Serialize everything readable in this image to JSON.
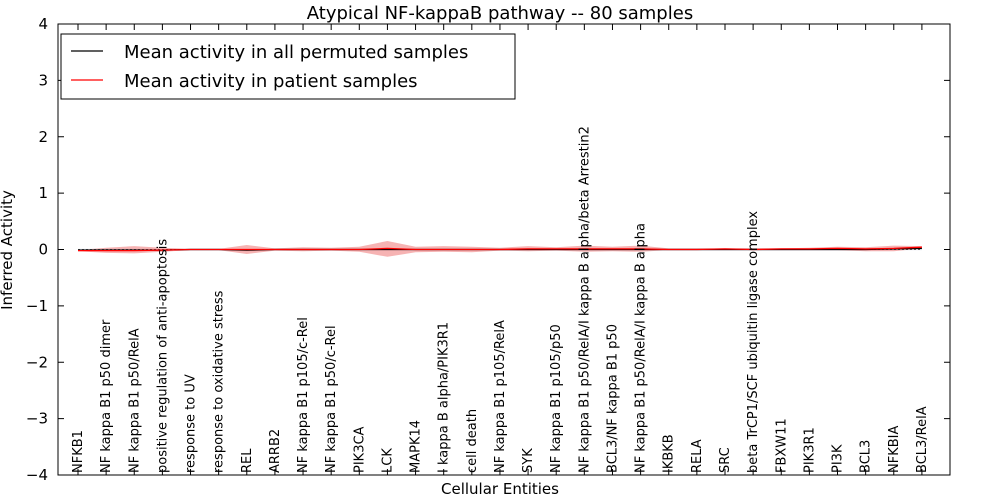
{
  "chart_data": {
    "type": "line",
    "title": "Atypical NF-kappaB pathway -- 80 samples",
    "xlabel": "Cellular Entities",
    "ylabel": "Inferred Activity",
    "ylim": [
      -4,
      4
    ],
    "yticks": [
      "4",
      "3",
      "2",
      "1",
      "0",
      "−1",
      "−2",
      "−3",
      "−4"
    ],
    "ytick_values": [
      4,
      3,
      2,
      1,
      0,
      -1,
      -2,
      -3,
      -4
    ],
    "categories": [
      "NFKB1",
      "NF kappa B1 p50 dimer",
      "NF kappa B1 p50/RelA",
      "positive regulation of anti-apoptosis",
      "response to UV",
      "response to oxidative stress",
      "REL",
      "ARRB2",
      "NF kappa B1 p105/c-Rel",
      "NF kappa B1 p50/c-Rel",
      "PIK3CA",
      "LCK",
      "MAPK14",
      "I kappa B alpha/PIK3R1",
      "cell death",
      "NF kappa B1 p105/RelA",
      "SYK",
      "NF kappa B1 p105/p50",
      "NF kappa B1 p50/RelA/I kappa B alpha/beta Arrestin2",
      "BCL3/NF kappa B1 p50",
      "NF kappa B1 p50/RelA/I kappa B alpha",
      "IKBKB",
      "RELA",
      "SRC",
      "beta TrCP1/SCF ubiquitin ligase complex",
      "FBXW11",
      "PIK3R1",
      "PI3K",
      "BCL3",
      "NFKBIA",
      "BCL3/RelA"
    ],
    "series": [
      {
        "name": "Mean activity in all permuted samples",
        "color": "#000000",
        "values": [
          -0.01,
          -0.01,
          -0.01,
          -0.01,
          0.0,
          0.0,
          -0.01,
          0.0,
          0.0,
          0.0,
          0.0,
          0.0,
          0.0,
          0.0,
          0.0,
          0.0,
          0.0,
          0.0,
          0.0,
          0.0,
          0.0,
          0.0,
          0.0,
          0.0,
          0.0,
          0.0,
          0.0,
          0.0,
          0.0,
          0.01,
          0.02
        ],
        "band_low": [
          -0.03,
          -0.03,
          -0.03,
          -0.03,
          -0.02,
          -0.02,
          -0.03,
          -0.02,
          -0.02,
          -0.02,
          -0.02,
          -0.02,
          -0.02,
          -0.02,
          -0.02,
          -0.02,
          -0.02,
          -0.02,
          -0.02,
          -0.02,
          -0.02,
          -0.02,
          -0.02,
          -0.02,
          -0.02,
          -0.02,
          -0.02,
          -0.02,
          -0.02,
          -0.01,
          -0.01
        ],
        "band_high": [
          0.01,
          0.01,
          0.01,
          0.01,
          0.02,
          0.02,
          0.01,
          0.02,
          0.02,
          0.02,
          0.02,
          0.02,
          0.02,
          0.02,
          0.02,
          0.02,
          0.02,
          0.02,
          0.02,
          0.02,
          0.02,
          0.02,
          0.02,
          0.02,
          0.02,
          0.02,
          0.02,
          0.02,
          0.02,
          0.03,
          0.05
        ],
        "band_color": "#9fb3c8"
      },
      {
        "name": "Mean activity in patient samples",
        "color": "#ff0000",
        "values": [
          -0.02,
          -0.02,
          -0.02,
          -0.01,
          0.0,
          0.0,
          0.0,
          0.0,
          0.0,
          0.0,
          0.0,
          0.02,
          0.0,
          0.0,
          0.0,
          0.0,
          0.01,
          0.01,
          0.01,
          0.01,
          0.01,
          0.0,
          0.0,
          0.01,
          0.0,
          0.01,
          0.01,
          0.02,
          0.01,
          0.02,
          0.04
        ],
        "band_low": [
          -0.03,
          -0.06,
          -0.07,
          -0.04,
          -0.01,
          -0.01,
          -0.08,
          -0.02,
          -0.03,
          -0.02,
          -0.04,
          -0.13,
          -0.05,
          -0.04,
          -0.05,
          -0.02,
          -0.03,
          -0.02,
          -0.04,
          -0.03,
          -0.04,
          -0.01,
          -0.01,
          -0.01,
          -0.01,
          -0.01,
          -0.01,
          -0.01,
          -0.03,
          -0.03,
          0.02
        ],
        "band_high": [
          -0.01,
          0.03,
          0.06,
          0.03,
          0.01,
          0.01,
          0.08,
          0.02,
          0.04,
          0.03,
          0.05,
          0.15,
          0.05,
          0.06,
          0.05,
          0.03,
          0.06,
          0.04,
          0.07,
          0.05,
          0.07,
          0.02,
          0.02,
          0.02,
          0.02,
          0.02,
          0.03,
          0.05,
          0.04,
          0.07,
          0.06
        ],
        "band_color": "#f08080"
      }
    ],
    "legend_position": "top-left",
    "grid": false
  }
}
